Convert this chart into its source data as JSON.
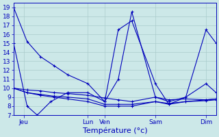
{
  "background_color": "#cce8e8",
  "grid_color": "#aacccc",
  "line_color": "#0000bb",
  "xlabel": "Température (°c)",
  "xlabel_fontsize": 8,
  "ylabel_fontsize": 6.5,
  "tick_fontsize": 6.5,
  "ylim": [
    7,
    19.5
  ],
  "yticks": [
    7,
    8,
    9,
    10,
    11,
    12,
    13,
    14,
    15,
    16,
    17,
    18,
    19
  ],
  "xlim": [
    0,
    300
  ],
  "day_positions": [
    15,
    110,
    135,
    210,
    285
  ],
  "day_labels": [
    "Jeu",
    "Lun",
    "Ven",
    "Sam",
    "Dim"
  ],
  "series": [
    {
      "x": [
        0,
        20,
        40,
        60,
        80,
        110,
        135,
        155,
        175,
        210,
        230,
        255,
        285,
        300
      ],
      "y": [
        19,
        15.2,
        13.5,
        12.5,
        11.5,
        10.5,
        8.5,
        11.0,
        18.5,
        9.0,
        8.5,
        9.0,
        10.5,
        9.5
      ]
    },
    {
      "x": [
        0,
        20,
        35,
        55,
        80,
        110,
        135,
        155,
        175,
        210,
        230,
        255,
        285,
        300
      ],
      "y": [
        15.0,
        8.0,
        7.0,
        8.5,
        9.5,
        9.5,
        8.5,
        16.5,
        17.5,
        10.5,
        8.2,
        9.0,
        16.5,
        15.0
      ]
    },
    {
      "x": [
        0,
        20,
        40,
        60,
        80,
        110,
        135,
        155,
        175,
        210,
        230,
        255,
        285,
        300
      ],
      "y": [
        10.0,
        9.8,
        9.7,
        9.5,
        9.4,
        9.2,
        8.9,
        8.7,
        8.5,
        9.0,
        8.7,
        8.8,
        8.7,
        8.8
      ]
    },
    {
      "x": [
        0,
        20,
        40,
        60,
        80,
        110,
        135,
        155,
        175,
        210,
        230,
        255,
        285,
        300
      ],
      "y": [
        10.0,
        9.5,
        9.3,
        9.1,
        9.0,
        8.8,
        8.2,
        8.2,
        8.2,
        8.5,
        8.3,
        8.5,
        8.6,
        8.7
      ]
    },
    {
      "x": [
        0,
        20,
        40,
        60,
        80,
        110,
        135,
        155,
        175,
        210,
        230,
        255,
        285,
        300
      ],
      "y": [
        10.0,
        9.5,
        9.2,
        9.0,
        8.8,
        8.5,
        8.0,
        8.0,
        8.0,
        8.5,
        8.2,
        8.5,
        8.7,
        8.8
      ]
    }
  ]
}
